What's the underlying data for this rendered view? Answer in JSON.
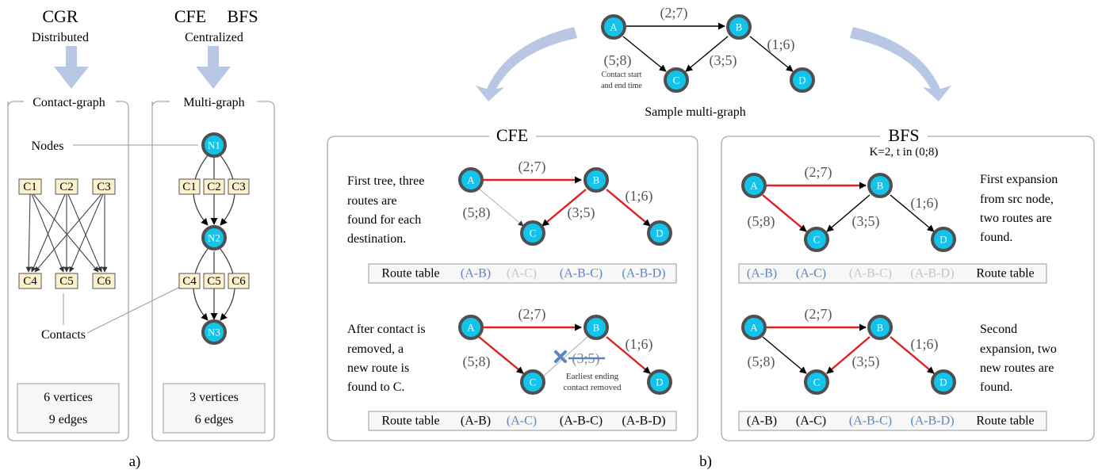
{
  "part_a": {
    "label": "a)",
    "cgr": {
      "title": "CGR",
      "subtitle": "Distributed",
      "panel_title": "Contact-graph",
      "contacts_top": [
        "C1",
        "C2",
        "C3"
      ],
      "contacts_bottom": [
        "C4",
        "C5",
        "C6"
      ],
      "summary_vertices": "6 vertices",
      "summary_edges": "9 edges"
    },
    "cfe_bfs": {
      "title_cfe": "CFE",
      "title_bfs": "BFS",
      "subtitle": "Centralized",
      "panel_title": "Multi-graph",
      "nodes": [
        "N1",
        "N2",
        "N3"
      ],
      "contacts_top": [
        "C1",
        "C2",
        "C3"
      ],
      "contacts_bottom": [
        "C4",
        "C5",
        "C6"
      ],
      "summary_vertices": "3 vertices",
      "summary_edges": "6 edges"
    },
    "annotation_nodes": "Nodes",
    "annotation_contacts": "Contacts"
  },
  "part_b": {
    "label": "b)",
    "sample": {
      "caption": "Sample multi-graph",
      "nodes": [
        "A",
        "B",
        "C",
        "D"
      ],
      "edge_ab": "(2;7)",
      "edge_ac": "(5;8)",
      "edge_bc": "(3;5)",
      "edge_bd": "(1;6)",
      "note_line1": "Contact start",
      "note_line2": "and end time"
    },
    "cfe": {
      "title": "CFE",
      "desc1": [
        "First tree, three",
        "routes are",
        "found for each",
        "destination."
      ],
      "desc2": [
        "After contact is",
        "removed, a",
        "new route is",
        "found to C."
      ],
      "removed_note_line1": "Earliest ending",
      "removed_note_line2": "contact removed",
      "route_table_label": "Route table",
      "routes1": [
        "(A-B)",
        "(A-C)",
        "(A-B-C)",
        "(A-B-D)"
      ],
      "routes2": [
        "(A-B)",
        "(A-C)",
        "(A-B-C)",
        "(A-B-D)"
      ]
    },
    "bfs": {
      "title": "BFS",
      "subtitle": "K=2, t in (0;8)",
      "desc1": [
        "First expansion",
        "from src node,",
        "two routes are",
        "found."
      ],
      "desc2": [
        "Second",
        "expansion, two",
        "new routes are",
        "found."
      ],
      "route_table_label": "Route table",
      "routes1": [
        "(A-B)",
        "(A-C)",
        "(A-B-C)",
        "(A-B-D)"
      ],
      "routes2": [
        "(A-B)",
        "(A-C)",
        "(A-B-C)",
        "(A-B-D)"
      ]
    }
  },
  "colors": {
    "node_fill": "#12c4ec",
    "node_stroke": "#505050",
    "route_edge": "#e02020",
    "new_route_text": "#5b85c2",
    "inactive_route_text": "#c4c4c4",
    "big_arrow": "#b8c8e4"
  }
}
